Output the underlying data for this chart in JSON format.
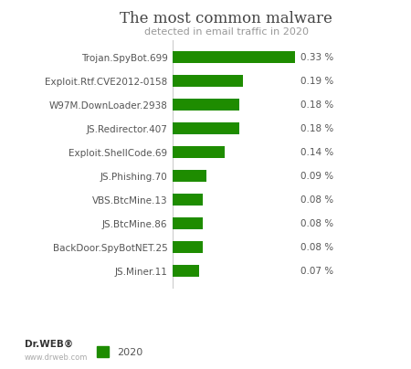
{
  "title": "The most common malware",
  "subtitle": "detected in email traffic in 2020",
  "categories": [
    "JS.Miner.11",
    "BackDoor.SpyBotNET.25",
    "JS.BtcMine.86",
    "VBS.BtcMine.13",
    "JS.Phishing.70",
    "Exploit.ShellCode.69",
    "JS.Redirector.407",
    "W97M.DownLoader.2938",
    "Exploit.Rtf.CVE2012-0158",
    "Trojan.SpyBot.699"
  ],
  "values": [
    0.07,
    0.08,
    0.08,
    0.08,
    0.09,
    0.14,
    0.18,
    0.18,
    0.19,
    0.33
  ],
  "labels": [
    "0.07 %",
    "0.08 %",
    "0.08 %",
    "0.08 %",
    "0.09 %",
    "0.14 %",
    "0.18 %",
    "0.18 %",
    "0.19 %",
    "0.33 %"
  ],
  "bar_color": "#1e8c00",
  "background_color": "#ffffff",
  "legend_label": "2020",
  "title_fontsize": 12,
  "subtitle_fontsize": 8,
  "tick_fontsize": 7.5,
  "value_fontsize": 7.5,
  "legend_fontsize": 8
}
